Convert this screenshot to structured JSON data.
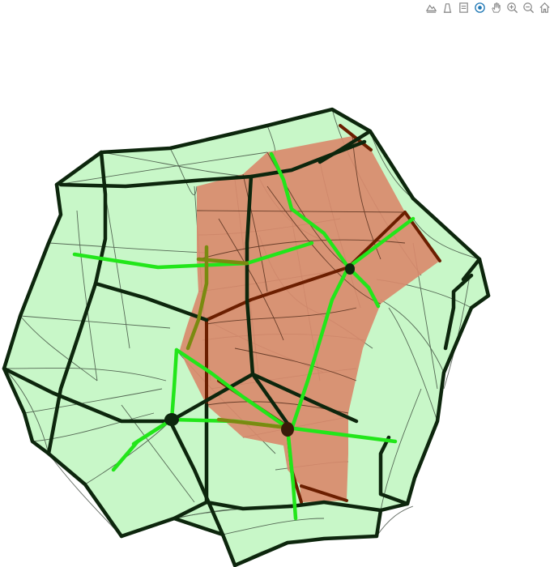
{
  "modebar": {
    "buttons": [
      {
        "name": "download-plot-icon",
        "active": false
      },
      {
        "name": "zoom-3d-icon",
        "active": false
      },
      {
        "name": "pan-3d-icon",
        "active": false
      },
      {
        "name": "orbit-rotation-icon",
        "active": true
      },
      {
        "name": "turntable-rotation-icon",
        "active": false
      },
      {
        "name": "zoom-in-icon",
        "active": false
      },
      {
        "name": "zoom-out-icon",
        "active": false
      },
      {
        "name": "reset-camera-icon",
        "active": false
      }
    ]
  },
  "colors": {
    "body_fill": "#c8f7c8",
    "body_edge": "#0d260d",
    "face_fill": "#d98a6c",
    "face_edge": "#6b1e00",
    "green_path": "#22e61a",
    "mesh_line": "#2f3a2f",
    "accent": "#1f77b4"
  }
}
